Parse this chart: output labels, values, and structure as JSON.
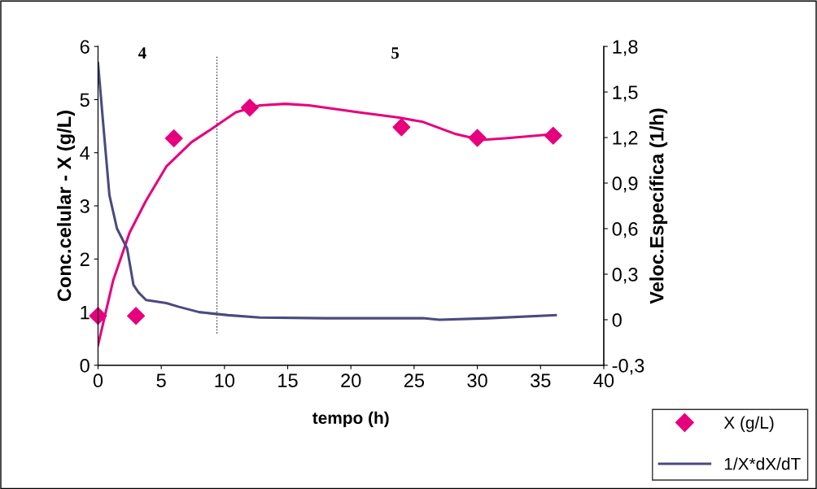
{
  "chart_data": {
    "type": "scatter",
    "xlabel": "tempo (h)",
    "ylabel": "Conc.celular - X (g/L)",
    "y2label": "Veloc.Específica (1/h)",
    "xlim": [
      0,
      40
    ],
    "xticks": [
      0,
      5,
      10,
      15,
      20,
      25,
      30,
      35,
      40
    ],
    "ylim": [
      0,
      6
    ],
    "yticks": [
      0,
      1,
      2,
      3,
      4,
      5,
      6
    ],
    "y2lim": [
      -0.3,
      1.8
    ],
    "y2ticks": [
      {
        "value": -0.3,
        "label": "-0,3"
      },
      {
        "value": 0,
        "label": "0"
      },
      {
        "value": 0.3,
        "label": "0,3"
      },
      {
        "value": 0.6,
        "label": "0,6"
      },
      {
        "value": 0.9,
        "label": "0,9"
      },
      {
        "value": 1.2,
        "label": "1,2"
      },
      {
        "value": 1.5,
        "label": "1,5"
      },
      {
        "value": 1.8,
        "label": "1,8"
      }
    ],
    "series": [
      {
        "name": "X (g/L)",
        "marker": "diamond",
        "color": "#e6007e",
        "x": [
          0,
          3,
          6,
          12,
          24,
          30,
          36
        ],
        "values": [
          0.93,
          0.93,
          4.27,
          4.85,
          4.48,
          4.28,
          4.32
        ]
      },
      {
        "type": "line",
        "color": "#e6007e",
        "x": [
          0,
          1.2,
          2.5,
          3.8,
          5.4,
          7.4,
          9,
          10.9,
          12.8,
          14.8,
          16.7,
          20.6,
          23.8,
          25.7,
          28.3,
          30.3,
          32.2,
          36
        ],
        "values": [
          0.38,
          1.6,
          2.5,
          3.1,
          3.74,
          4.2,
          4.45,
          4.76,
          4.89,
          4.92,
          4.89,
          4.76,
          4.66,
          4.58,
          4.35,
          4.24,
          4.27,
          4.35
        ]
      },
      {
        "name": "1/X*dX/dT",
        "type": "line",
        "axis": "y2",
        "color": "#4b4a7f",
        "x": [
          0,
          0.45,
          0.9,
          1.5,
          2.3,
          2.8,
          3.2,
          3.8,
          5.4,
          6.4,
          8,
          10.3,
          12.8,
          18,
          25.7,
          27,
          30.9,
          36.2
        ],
        "values": [
          1.69,
          1.25,
          0.82,
          0.6,
          0.47,
          0.23,
          0.18,
          0.13,
          0.11,
          0.085,
          0.05,
          0.03,
          0.015,
          0.01,
          0.01,
          0.0,
          0.01,
          0.03
        ]
      }
    ],
    "ref_lines": [
      {
        "axis": "x",
        "value": 9.4,
        "line_style": "dotted",
        "color": "#333333"
      }
    ],
    "annotations": [
      "4",
      "5"
    ],
    "legend": "bottom right",
    "grid": false
  }
}
